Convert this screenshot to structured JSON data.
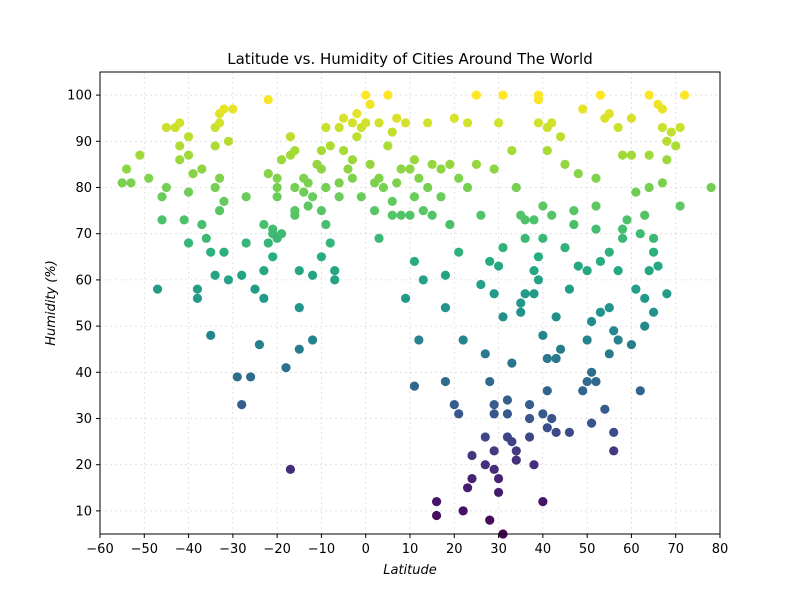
{
  "chart_data": {
    "type": "scatter",
    "title": "Latitude vs. Humidity of Cities Around The World",
    "xlabel": "Latitude",
    "ylabel": "Humidity (%)",
    "xlim": [
      -60,
      80
    ],
    "ylim": [
      5,
      105
    ],
    "xticks": [
      -60,
      -50,
      -40,
      -30,
      -20,
      -10,
      0,
      10,
      20,
      30,
      40,
      50,
      60,
      70,
      80
    ],
    "yticks": [
      10,
      20,
      30,
      40,
      50,
      60,
      70,
      80,
      90,
      100
    ],
    "grid": true,
    "colormap": "viridis (point color mapped to humidity)",
    "colors": {
      "low": "#440154",
      "mid": "#21918c",
      "high": "#fde725"
    },
    "points": [
      [
        -55,
        81
      ],
      [
        -54,
        84
      ],
      [
        -53,
        81
      ],
      [
        -51,
        87
      ],
      [
        -49,
        82
      ],
      [
        -47,
        58
      ],
      [
        -46,
        73
      ],
      [
        -46,
        78
      ],
      [
        -45,
        93
      ],
      [
        -45,
        80
      ],
      [
        -43,
        93
      ],
      [
        -42,
        94
      ],
      [
        -42,
        89
      ],
      [
        -42,
        86
      ],
      [
        -41,
        73
      ],
      [
        -40,
        68
      ],
      [
        -40,
        79
      ],
      [
        -40,
        87
      ],
      [
        -40,
        91
      ],
      [
        -39,
        83
      ],
      [
        -38,
        58
      ],
      [
        -38,
        56
      ],
      [
        -37,
        84
      ],
      [
        -37,
        72
      ],
      [
        -36,
        69
      ],
      [
        -35,
        66
      ],
      [
        -35,
        48
      ],
      [
        -34,
        93
      ],
      [
        -34,
        89
      ],
      [
        -34,
        80
      ],
      [
        -34,
        61
      ],
      [
        -33,
        96
      ],
      [
        -33,
        94
      ],
      [
        -33,
        75
      ],
      [
        -33,
        82
      ],
      [
        -32,
        77
      ],
      [
        -32,
        97
      ],
      [
        -32,
        66
      ],
      [
        -31,
        60
      ],
      [
        -31,
        90
      ],
      [
        -30,
        97
      ],
      [
        -29,
        39
      ],
      [
        -28,
        33
      ],
      [
        -28,
        61
      ],
      [
        -27,
        68
      ],
      [
        -27,
        78
      ],
      [
        -26,
        39
      ],
      [
        -25,
        58
      ],
      [
        -24,
        46
      ],
      [
        -23,
        62
      ],
      [
        -23,
        56
      ],
      [
        -23,
        72
      ],
      [
        -22,
        68
      ],
      [
        -22,
        83
      ],
      [
        -22,
        99
      ],
      [
        -21,
        71
      ],
      [
        -21,
        70
      ],
      [
        -21,
        65
      ],
      [
        -20,
        69
      ],
      [
        -20,
        78
      ],
      [
        -20,
        80
      ],
      [
        -20,
        82
      ],
      [
        -19,
        70
      ],
      [
        -19,
        86
      ],
      [
        -18,
        41
      ],
      [
        -17,
        19
      ],
      [
        -17,
        87
      ],
      [
        -17,
        91
      ],
      [
        -16,
        74
      ],
      [
        -16,
        75
      ],
      [
        -16,
        80
      ],
      [
        -16,
        88
      ],
      [
        -15,
        54
      ],
      [
        -15,
        62
      ],
      [
        -15,
        45
      ],
      [
        -14,
        79
      ],
      [
        -14,
        82
      ],
      [
        -13,
        76
      ],
      [
        -13,
        81
      ],
      [
        -12,
        47
      ],
      [
        -12,
        78
      ],
      [
        -12,
        61
      ],
      [
        -11,
        85
      ],
      [
        -10,
        88
      ],
      [
        -10,
        75
      ],
      [
        -10,
        65
      ],
      [
        -10,
        84
      ],
      [
        -9,
        80
      ],
      [
        -9,
        93
      ],
      [
        -9,
        72
      ],
      [
        -8,
        89
      ],
      [
        -8,
        68
      ],
      [
        -7,
        60
      ],
      [
        -7,
        62
      ],
      [
        -6,
        93
      ],
      [
        -6,
        78
      ],
      [
        -6,
        81
      ],
      [
        -5,
        95
      ],
      [
        -5,
        88
      ],
      [
        -4,
        84
      ],
      [
        -3,
        82
      ],
      [
        -3,
        86
      ],
      [
        -3,
        94
      ],
      [
        -2,
        91
      ],
      [
        -2,
        96
      ],
      [
        -1,
        78
      ],
      [
        -1,
        93
      ],
      [
        0,
        100
      ],
      [
        0,
        94
      ],
      [
        1,
        98
      ],
      [
        1,
        85
      ],
      [
        2,
        75
      ],
      [
        2,
        81
      ],
      [
        3,
        94
      ],
      [
        3,
        82
      ],
      [
        3,
        69
      ],
      [
        4,
        80
      ],
      [
        5,
        100
      ],
      [
        5,
        89
      ],
      [
        6,
        92
      ],
      [
        6,
        77
      ],
      [
        6,
        74
      ],
      [
        7,
        81
      ],
      [
        7,
        95
      ],
      [
        8,
        74
      ],
      [
        8,
        84
      ],
      [
        9,
        56
      ],
      [
        9,
        94
      ],
      [
        10,
        74
      ],
      [
        10,
        84
      ],
      [
        11,
        86
      ],
      [
        11,
        78
      ],
      [
        11,
        64
      ],
      [
        11,
        37
      ],
      [
        12,
        82
      ],
      [
        12,
        47
      ],
      [
        13,
        60
      ],
      [
        13,
        75
      ],
      [
        14,
        94
      ],
      [
        14,
        80
      ],
      [
        15,
        74
      ],
      [
        15,
        85
      ],
      [
        16,
        12
      ],
      [
        16,
        9
      ],
      [
        17,
        84
      ],
      [
        17,
        78
      ],
      [
        18,
        61
      ],
      [
        18,
        54
      ],
      [
        18,
        38
      ],
      [
        19,
        85
      ],
      [
        19,
        72
      ],
      [
        20,
        33
      ],
      [
        20,
        95
      ],
      [
        21,
        82
      ],
      [
        21,
        66
      ],
      [
        21,
        31
      ],
      [
        22,
        47
      ],
      [
        22,
        10
      ],
      [
        23,
        15
      ],
      [
        23,
        94
      ],
      [
        23,
        80
      ],
      [
        24,
        17
      ],
      [
        24,
        22
      ],
      [
        25,
        100
      ],
      [
        25,
        85
      ],
      [
        26,
        74
      ],
      [
        26,
        59
      ],
      [
        27,
        26
      ],
      [
        27,
        44
      ],
      [
        27,
        20
      ],
      [
        28,
        8
      ],
      [
        28,
        38
      ],
      [
        28,
        64
      ],
      [
        29,
        57
      ],
      [
        29,
        31
      ],
      [
        29,
        19
      ],
      [
        29,
        23
      ],
      [
        29,
        33
      ],
      [
        29,
        84
      ],
      [
        30,
        63
      ],
      [
        30,
        94
      ],
      [
        30,
        17
      ],
      [
        30,
        14
      ],
      [
        31,
        5
      ],
      [
        31,
        100
      ],
      [
        31,
        67
      ],
      [
        31,
        52
      ],
      [
        32,
        34
      ],
      [
        32,
        26
      ],
      [
        32,
        31
      ],
      [
        33,
        42
      ],
      [
        33,
        88
      ],
      [
        33,
        25
      ],
      [
        34,
        21
      ],
      [
        34,
        23
      ],
      [
        34,
        80
      ],
      [
        35,
        55
      ],
      [
        35,
        53
      ],
      [
        35,
        74
      ],
      [
        36,
        69
      ],
      [
        36,
        73
      ],
      [
        36,
        57
      ],
      [
        37,
        33
      ],
      [
        37,
        26
      ],
      [
        37,
        30
      ],
      [
        38,
        20
      ],
      [
        38,
        57
      ],
      [
        38,
        62
      ],
      [
        38,
        73
      ],
      [
        39,
        100
      ],
      [
        39,
        99
      ],
      [
        39,
        94
      ],
      [
        39,
        60
      ],
      [
        39,
        65
      ],
      [
        40,
        12
      ],
      [
        40,
        48
      ],
      [
        40,
        69
      ],
      [
        40,
        31
      ],
      [
        40,
        76
      ],
      [
        41,
        28
      ],
      [
        41,
        36
      ],
      [
        41,
        43
      ],
      [
        41,
        88
      ],
      [
        41,
        93
      ],
      [
        42,
        74
      ],
      [
        42,
        94
      ],
      [
        42,
        30
      ],
      [
        43,
        52
      ],
      [
        43,
        43
      ],
      [
        43,
        27
      ],
      [
        44,
        45
      ],
      [
        44,
        91
      ],
      [
        45,
        67
      ],
      [
        45,
        85
      ],
      [
        46,
        27
      ],
      [
        46,
        58
      ],
      [
        47,
        72
      ],
      [
        47,
        75
      ],
      [
        48,
        83
      ],
      [
        48,
        63
      ],
      [
        49,
        36
      ],
      [
        49,
        97
      ],
      [
        50,
        47
      ],
      [
        50,
        38
      ],
      [
        50,
        62
      ],
      [
        51,
        40
      ],
      [
        51,
        29
      ],
      [
        51,
        51
      ],
      [
        52,
        76
      ],
      [
        52,
        82
      ],
      [
        52,
        71
      ],
      [
        52,
        38
      ],
      [
        53,
        64
      ],
      [
        53,
        53
      ],
      [
        53,
        100
      ],
      [
        54,
        95
      ],
      [
        54,
        32
      ],
      [
        55,
        96
      ],
      [
        55,
        44
      ],
      [
        55,
        66
      ],
      [
        55,
        54
      ],
      [
        56,
        49
      ],
      [
        56,
        23
      ],
      [
        56,
        27
      ],
      [
        57,
        93
      ],
      [
        57,
        47
      ],
      [
        57,
        62
      ],
      [
        58,
        69
      ],
      [
        58,
        87
      ],
      [
        58,
        71
      ],
      [
        59,
        73
      ],
      [
        60,
        95
      ],
      [
        60,
        87
      ],
      [
        60,
        46
      ],
      [
        61,
        79
      ],
      [
        61,
        58
      ],
      [
        62,
        70
      ],
      [
        62,
        36
      ],
      [
        63,
        50
      ],
      [
        63,
        56
      ],
      [
        63,
        74
      ],
      [
        64,
        100
      ],
      [
        64,
        80
      ],
      [
        64,
        87
      ],
      [
        64,
        62
      ],
      [
        65,
        69
      ],
      [
        65,
        66
      ],
      [
        65,
        53
      ],
      [
        66,
        98
      ],
      [
        66,
        63
      ],
      [
        67,
        97
      ],
      [
        67,
        93
      ],
      [
        67,
        81
      ],
      [
        68,
        57
      ],
      [
        68,
        90
      ],
      [
        68,
        86
      ],
      [
        69,
        92
      ],
      [
        70,
        89
      ],
      [
        71,
        93
      ],
      [
        71,
        76
      ],
      [
        72,
        100
      ],
      [
        78,
        80
      ]
    ]
  }
}
